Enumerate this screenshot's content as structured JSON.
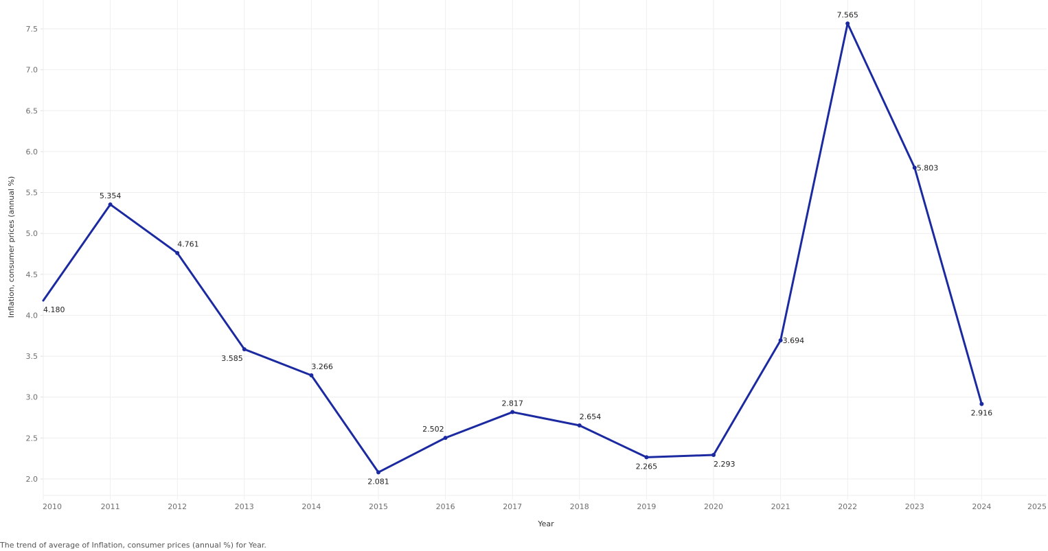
{
  "chart_data": {
    "type": "line",
    "title": "",
    "xlabel": "Year",
    "ylabel": "Inflation, consumer prices (annual %)",
    "x": [
      2010,
      2011,
      2012,
      2013,
      2014,
      2015,
      2016,
      2017,
      2018,
      2019,
      2020,
      2021,
      2022,
      2023,
      2024
    ],
    "series": [
      {
        "name": "Average of Inflation, consumer prices (annual %)",
        "values": [
          4.18,
          5.354,
          4.761,
          3.585,
          3.266,
          2.081,
          2.502,
          2.817,
          2.654,
          2.265,
          2.293,
          3.694,
          7.565,
          5.803,
          2.916
        ],
        "labels": [
          "4.180",
          "5.354",
          "4.761",
          "3.585",
          "3.266",
          "2.081",
          "2.502",
          "2.817",
          "2.654",
          "2.265",
          "2.293",
          "3.694",
          "7.565",
          "5.803",
          "2.916"
        ],
        "color": "#1b2aa0"
      }
    ],
    "x_ticks": [
      "2010",
      "2011",
      "2012",
      "2013",
      "2014",
      "2015",
      "2016",
      "2017",
      "2018",
      "2019",
      "2020",
      "2021",
      "2022",
      "2023",
      "2024",
      "2025"
    ],
    "y_ticks": [
      "2.0",
      "2.5",
      "3.0",
      "3.5",
      "4.0",
      "4.5",
      "5.0",
      "5.5",
      "6.0",
      "6.5",
      "7.0",
      "7.5"
    ],
    "xlim": [
      2010,
      2025
    ],
    "ylim": [
      1.8,
      7.8
    ],
    "grid": true,
    "legend": "none"
  },
  "caption": "The trend of average of Inflation, consumer prices (annual %) for Year.",
  "colors": {
    "line": "#1b2aa0",
    "grid": "#eeeeee",
    "tick_text": "#6e6e6e"
  }
}
